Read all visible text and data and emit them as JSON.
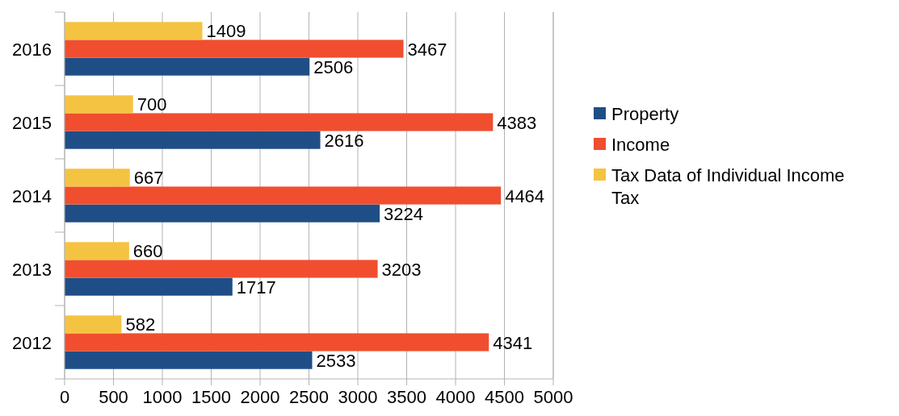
{
  "chart_data": {
    "type": "bar",
    "orientation": "horizontal",
    "categories": [
      "2016",
      "2015",
      "2014",
      "2013",
      "2012"
    ],
    "series": [
      {
        "name": "Property",
        "color": "#1f4e87",
        "values": [
          2506,
          2616,
          3224,
          1717,
          2533
        ]
      },
      {
        "name": "Income",
        "color": "#f04e2f",
        "values": [
          3467,
          4383,
          4464,
          3203,
          4341
        ]
      },
      {
        "name": "Tax Data of Individual Income Tax",
        "color": "#f5c342",
        "values": [
          1409,
          700,
          667,
          660,
          582
        ]
      }
    ],
    "xlim": [
      0,
      5000
    ],
    "xticks": [
      0,
      500,
      1000,
      1500,
      2000,
      2500,
      3000,
      3500,
      4000,
      4500,
      5000
    ],
    "grid": "x",
    "legend": "right",
    "data_labels": true
  }
}
